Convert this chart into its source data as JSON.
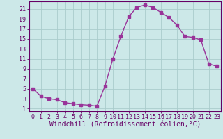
{
  "x": [
    0,
    1,
    2,
    3,
    4,
    5,
    6,
    7,
    8,
    9,
    10,
    11,
    12,
    13,
    14,
    15,
    16,
    17,
    18,
    19,
    20,
    21,
    22,
    23
  ],
  "y": [
    5.0,
    3.5,
    3.0,
    2.8,
    2.2,
    2.0,
    1.8,
    1.7,
    1.5,
    5.5,
    11.0,
    15.5,
    19.5,
    21.3,
    21.8,
    21.3,
    20.3,
    19.3,
    17.8,
    15.5,
    15.3,
    14.8,
    10.0,
    9.5
  ],
  "line_color": "#993399",
  "marker": "s",
  "marker_size": 2.5,
  "bg_color": "#cce8e8",
  "grid_color": "#aacccc",
  "xlabel": "Windchill (Refroidissement éolien,°C)",
  "xlabel_color": "#660066",
  "xlabel_fontsize": 7,
  "ytick_labels": [
    "1",
    "3",
    "5",
    "7",
    "9",
    "11",
    "13",
    "15",
    "17",
    "19",
    "21"
  ],
  "ytick_values": [
    1,
    3,
    5,
    7,
    9,
    11,
    13,
    15,
    17,
    19,
    21
  ],
  "ylim": [
    0.5,
    22.5
  ],
  "xlim": [
    -0.5,
    23.5
  ],
  "tick_color": "#660066",
  "tick_fontsize": 6,
  "line_width": 1.0
}
